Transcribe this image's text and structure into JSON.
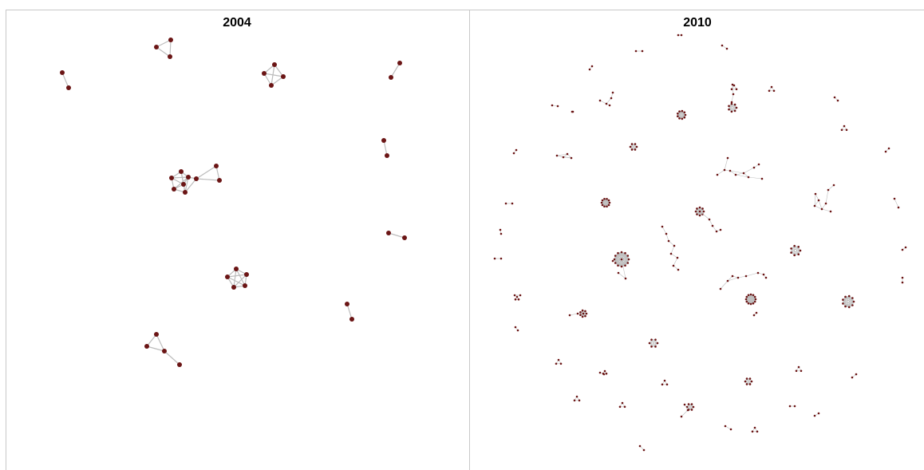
{
  "panels": [
    {
      "title": "2004"
    },
    {
      "title": "2010"
    }
  ],
  "colors": {
    "node": "#6b1515",
    "edge": "#bdbdbd",
    "frame": "#c8c8c8"
  }
}
